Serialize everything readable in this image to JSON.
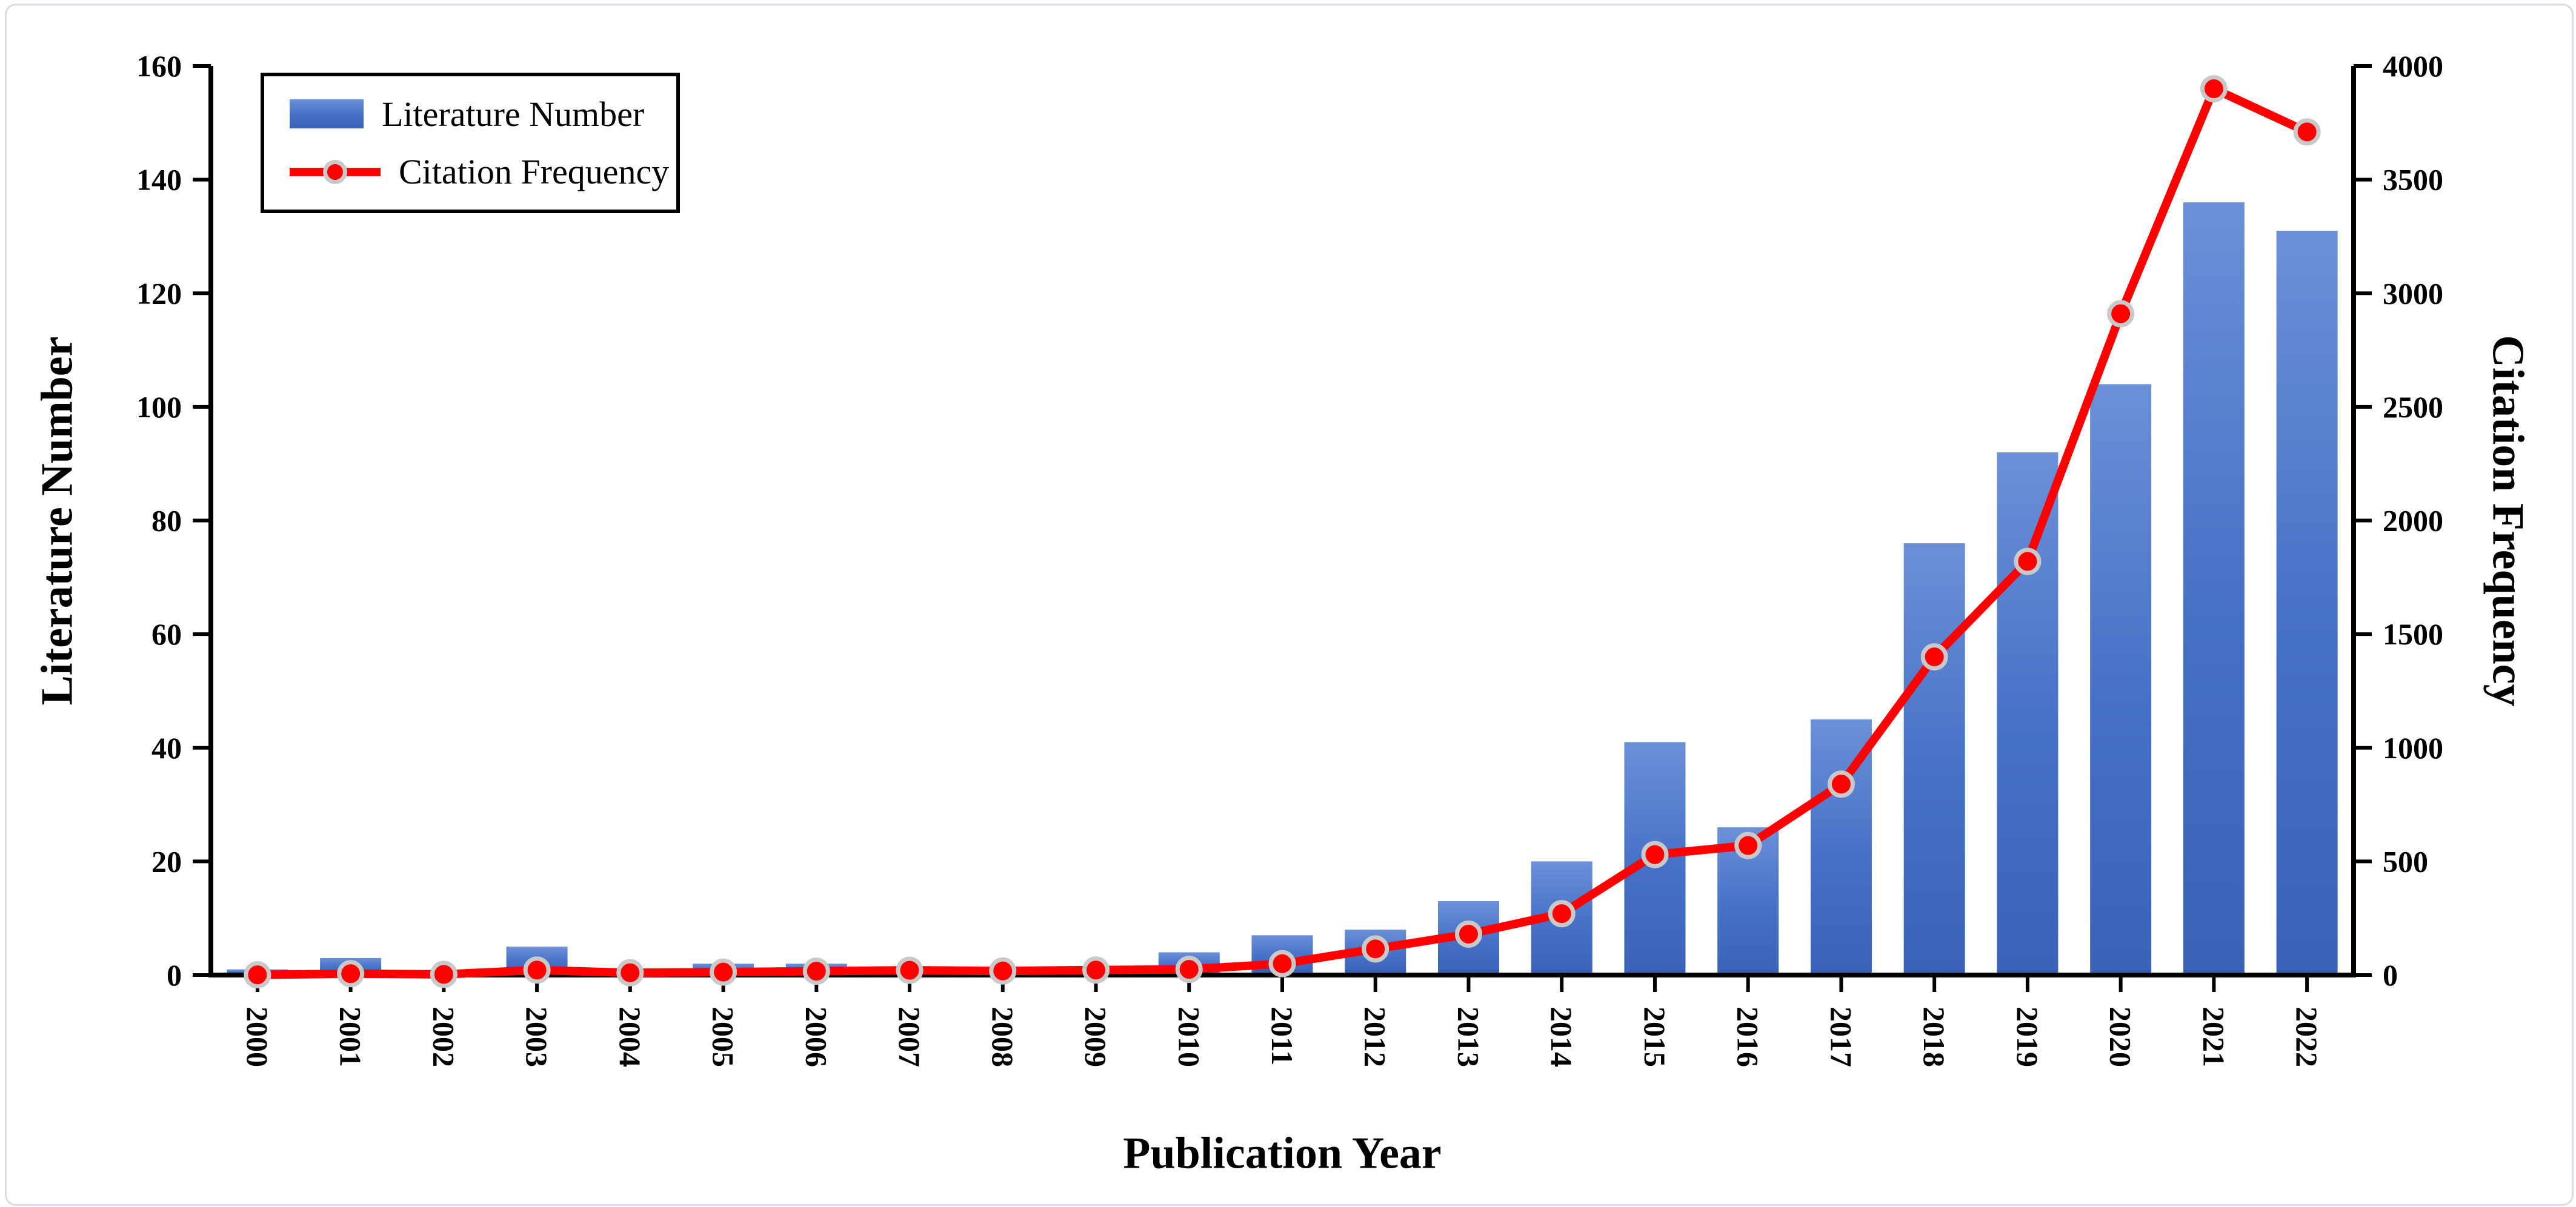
{
  "page": {
    "background_color": "#ffffff",
    "frame_border_color": "#d8dce4"
  },
  "chart_data": {
    "type": "combo-bar-line",
    "categories": [
      "2000",
      "2001",
      "2002",
      "2003",
      "2004",
      "2005",
      "2006",
      "2007",
      "2008",
      "2009",
      "2010",
      "2011",
      "2012",
      "2013",
      "2014",
      "2015",
      "2016",
      "2017",
      "2018",
      "2019",
      "2020",
      "2021",
      "2022"
    ],
    "series": [
      {
        "name": "Literature Number",
        "type": "bar",
        "axis": "left",
        "color_top": "#6C90D8",
        "color_mid": "#4470C6",
        "color_bottom": "#3A63B8",
        "values": [
          1,
          3,
          0,
          5,
          0,
          2,
          2,
          0,
          0,
          0,
          4,
          7,
          8,
          13,
          20,
          41,
          26,
          45,
          76,
          92,
          104,
          136,
          131
        ]
      },
      {
        "name": "Citation Frequency",
        "type": "line",
        "axis": "right",
        "color": "#FF0000",
        "marker": "circle",
        "marker_ring_color": "#C9C9C9",
        "values": [
          1,
          6,
          3,
          22,
          10,
          13,
          17,
          21,
          18,
          22,
          25,
          50,
          115,
          180,
          270,
          530,
          570,
          840,
          1400,
          1820,
          2910,
          3900,
          3710
        ]
      }
    ],
    "x_axis": {
      "title": "Publication Year",
      "label_rotation_deg": 90
    },
    "y_axis_left": {
      "title": "Literature Number",
      "min": 0,
      "max": 160,
      "ticks": [
        0,
        20,
        40,
        60,
        80,
        100,
        120,
        140,
        160
      ]
    },
    "y_axis_right": {
      "title": "Citation Frequency",
      "min": 0,
      "max": 4000,
      "ticks": [
        0,
        500,
        1000,
        1500,
        2000,
        2500,
        3000,
        3500,
        4000
      ]
    },
    "legend": {
      "position": "top-left",
      "entries": [
        "Literature Number",
        "Citation Frequency"
      ]
    },
    "grid": "off",
    "axis_color": "#000000"
  }
}
